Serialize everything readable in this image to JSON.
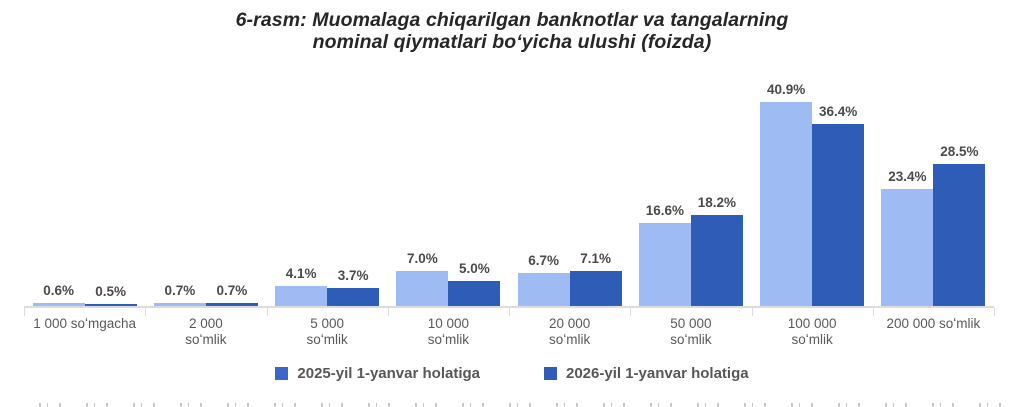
{
  "title": {
    "line1": "6-rasm: Muomalaga chiqarilgan banknotlar va tangalarning",
    "line2": "nominal qiymatlari boʻyicha ulushi (foizda)"
  },
  "legend": {
    "items": [
      {
        "label": "2025-yil 1-yanvar holatiga",
        "color": "#3A67C9"
      },
      {
        "label": "2026-yil 1-yanvar holatiga",
        "color": "#2E5CB8"
      }
    ]
  },
  "chart_data": {
    "type": "bar",
    "title": "6-rasm: Muomalaga chiqarilgan banknotlar va tangalarning nominal qiymatlari boʻyicha ulushi (foizda)",
    "categories": [
      "1 000 soʻmgacha",
      "2 000 soʻmlik",
      "5 000 soʻmlik",
      "10 000 soʻmlik",
      "20 000 soʻmlik",
      "50 000 soʻmlik",
      "100 000 soʻmlik",
      "200 000 soʻmlik"
    ],
    "category_lines": [
      [
        "1 000 soʻmgacha"
      ],
      [
        "2 000",
        "soʻmlik"
      ],
      [
        "5 000",
        "soʻmlik"
      ],
      [
        "10 000",
        "soʻmlik"
      ],
      [
        "20 000",
        "soʻmlik"
      ],
      [
        "50 000",
        "soʻmlik"
      ],
      [
        "100 000",
        "soʻmlik"
      ],
      [
        "200 000 soʻmlik"
      ]
    ],
    "series": [
      {
        "name": "2025-yil 1-yanvar holatiga",
        "color": "#9EBBF3",
        "values": [
          0.6,
          0.7,
          4.1,
          7.0,
          6.7,
          16.6,
          40.9,
          23.4
        ],
        "labels": [
          "0.6%",
          "0.7%",
          "4.1%",
          "7.0%",
          "6.7%",
          "16.6%",
          "40.9%",
          "23.4%"
        ]
      },
      {
        "name": "2026-yil 1-yanvar holatiga",
        "color": "#2F5CB6",
        "values": [
          0.5,
          0.7,
          3.7,
          5.0,
          7.1,
          18.2,
          36.4,
          28.5
        ],
        "labels": [
          "0.5%",
          "0.7%",
          "3.7%",
          "5.0%",
          "7.1%",
          "18.2%",
          "36.4%",
          "28.5%"
        ]
      }
    ],
    "unit": "%",
    "xlabel": "",
    "ylabel": "",
    "ylim": [
      0,
      45
    ],
    "grid": false,
    "value_labels_shown": true,
    "legend_position": "bottom",
    "axis_baseline_color": "#DCDCDC"
  }
}
